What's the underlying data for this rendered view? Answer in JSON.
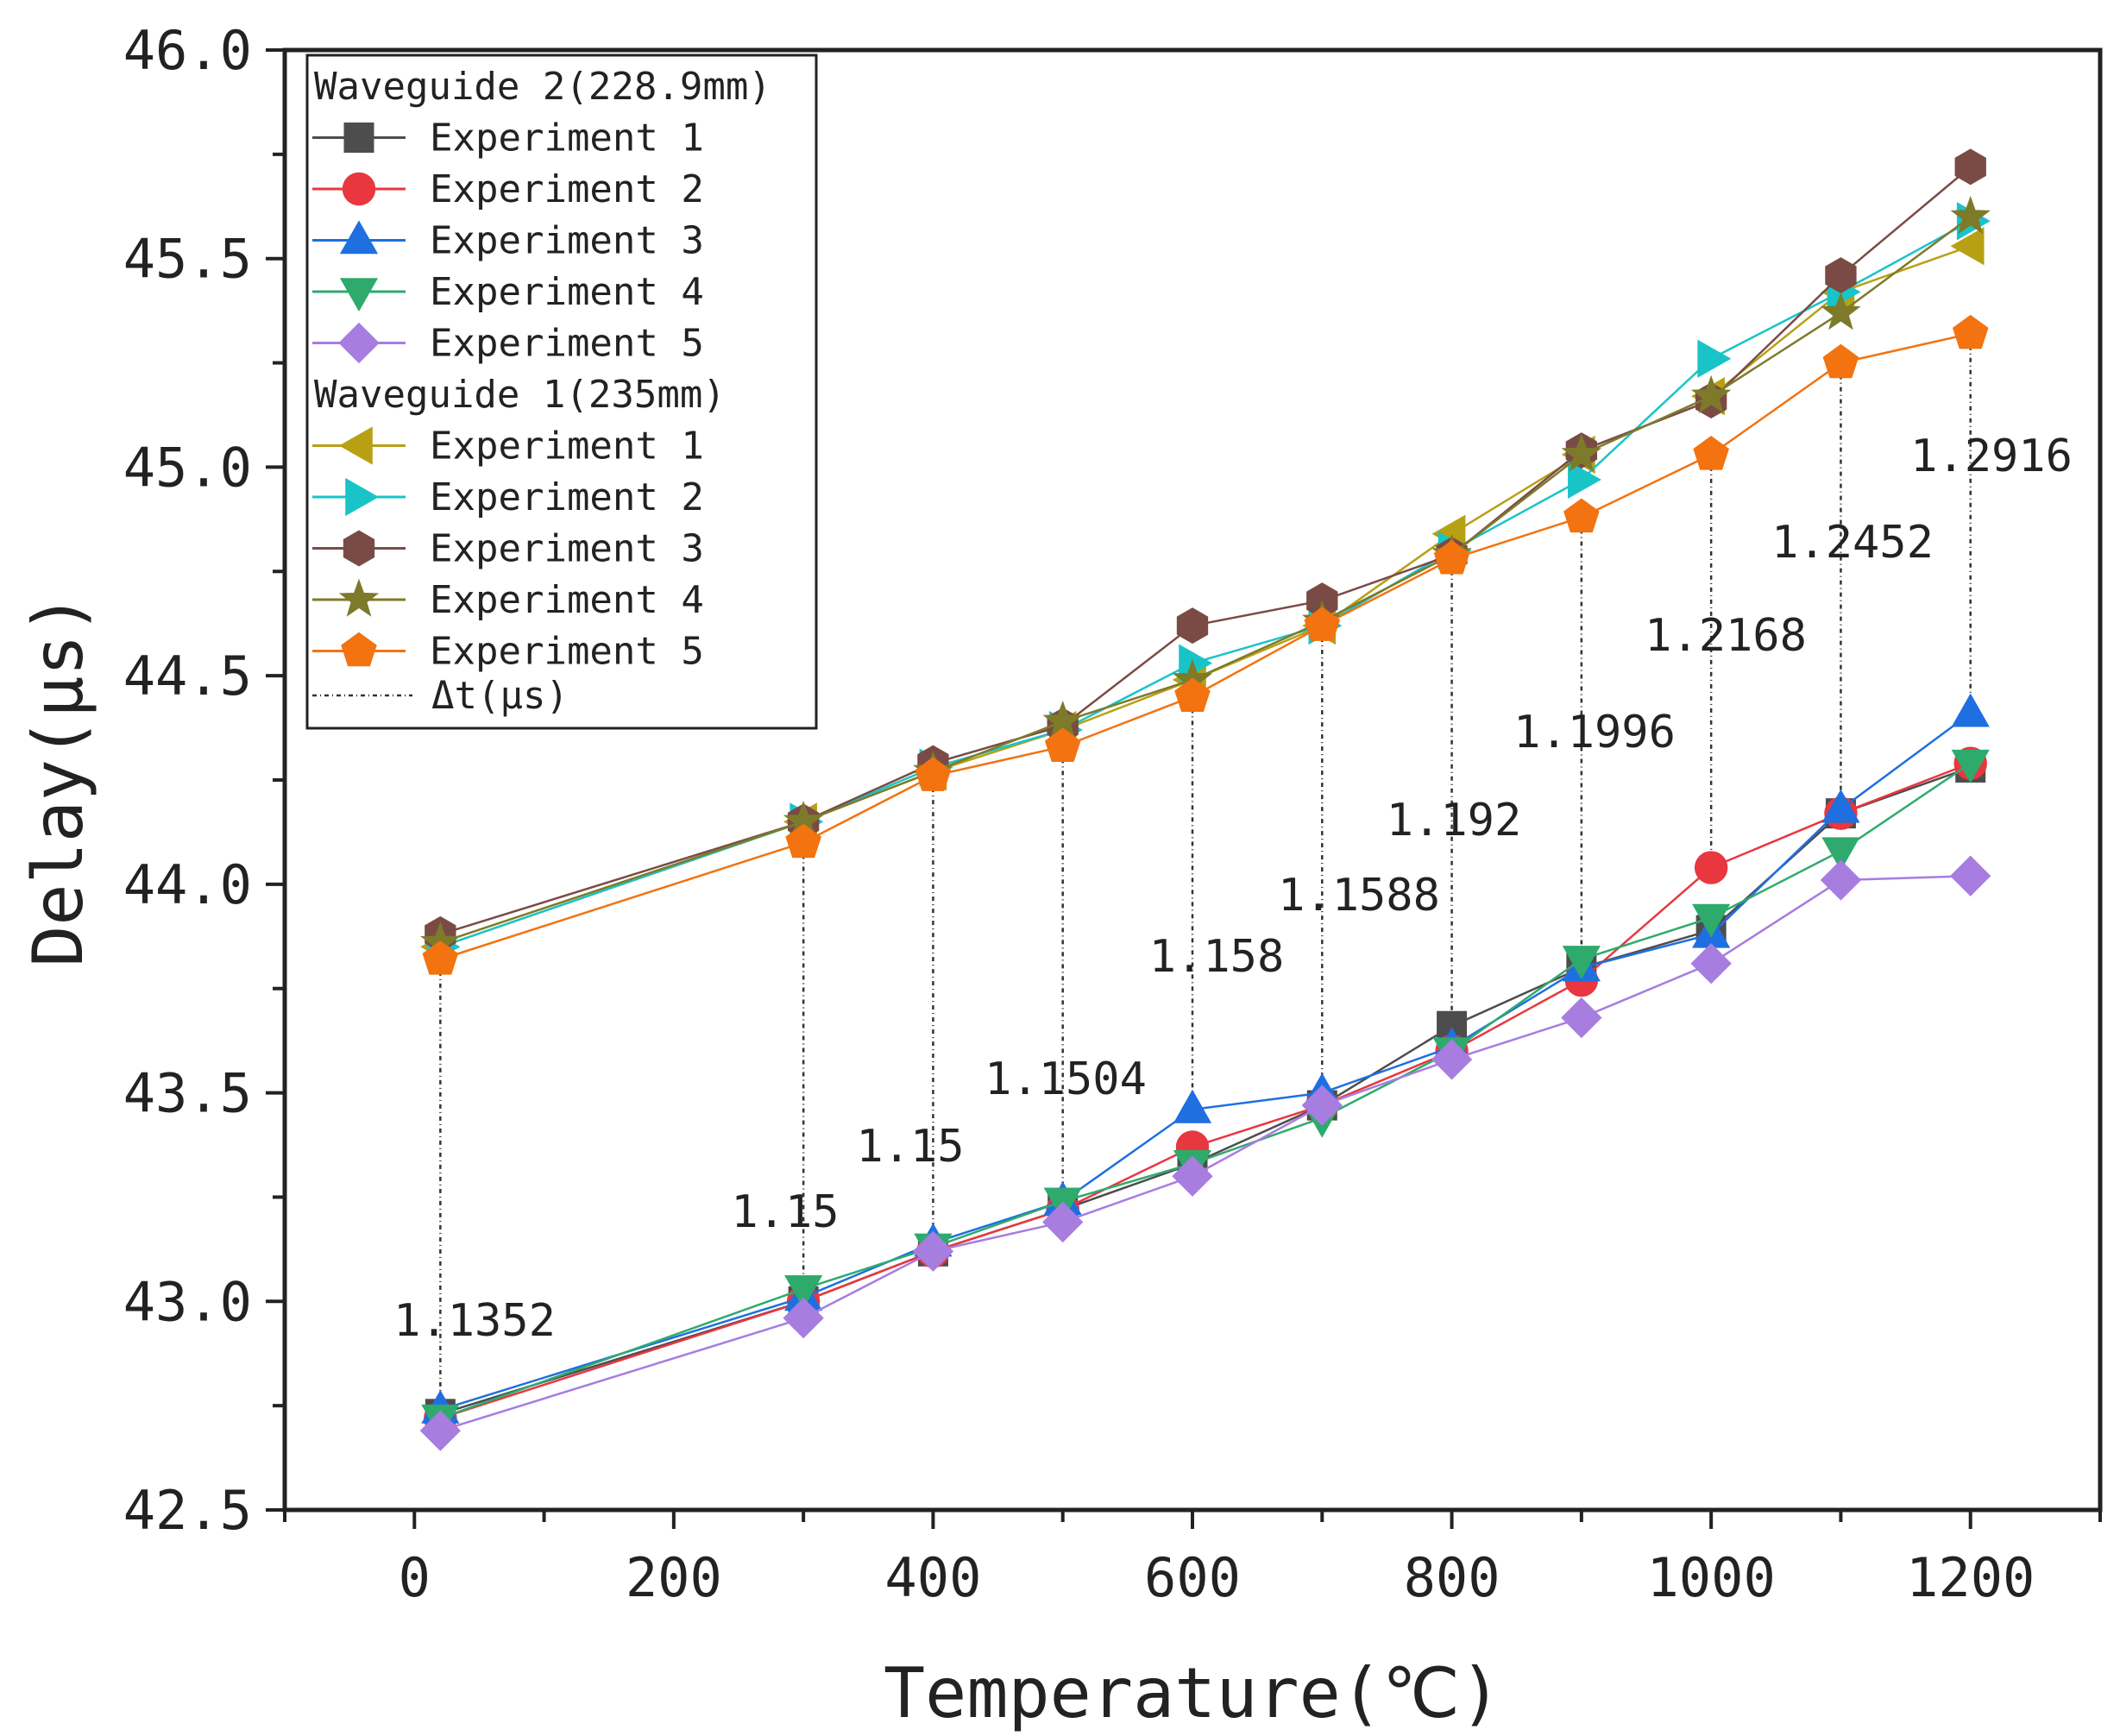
{
  "chart_data": {
    "type": "line",
    "xlabel": "Temperature(℃)",
    "ylabel": "Delay(μs)",
    "xlim": [
      -100,
      1300
    ],
    "ylim": [
      42.5,
      46.0
    ],
    "xticks": [
      0,
      200,
      400,
      600,
      800,
      1000,
      1200
    ],
    "yticks": [
      42.5,
      43.0,
      43.5,
      44.0,
      44.5,
      45.0,
      45.5,
      46.0
    ],
    "ytick_labels": [
      "42.5",
      "43.0",
      "43.5",
      "44.0",
      "44.5",
      "45.0",
      "45.5",
      "46.0"
    ],
    "x": [
      20,
      300,
      400,
      500,
      600,
      700,
      800,
      900,
      1000,
      1100,
      1200
    ],
    "legend_position": "top-left",
    "groups": [
      {
        "name": "Waveguide 2(228.9mm)",
        "series": [
          {
            "name": "Experiment 1",
            "marker": "square",
            "color": "#4d4d4d",
            "values": [
              42.73,
              43.0,
              43.12,
              43.22,
              43.33,
              43.47,
              43.66,
              43.8,
              43.89,
              44.17,
              44.28
            ]
          },
          {
            "name": "Experiment 2",
            "marker": "circle",
            "color": "#e8373f",
            "values": [
              42.72,
              43.0,
              43.12,
              43.22,
              43.37,
              43.47,
              43.6,
              43.77,
              44.04,
              44.17,
              44.29
            ]
          },
          {
            "name": "Experiment 3",
            "marker": "triangle-up",
            "color": "#1f6fe0",
            "values": [
              42.74,
              43.01,
              43.14,
              43.24,
              43.46,
              43.5,
              43.61,
              43.8,
              43.88,
              44.18,
              44.41
            ]
          },
          {
            "name": "Experiment 4",
            "marker": "triangle-down",
            "color": "#2faa6d",
            "values": [
              42.72,
              43.03,
              43.13,
              43.24,
              43.33,
              43.44,
              43.6,
              43.82,
              43.92,
              44.08,
              44.29
            ]
          },
          {
            "name": "Experiment 5",
            "marker": "diamond",
            "color": "#a77de0",
            "values": [
              42.69,
              42.96,
              43.12,
              43.19,
              43.3,
              43.47,
              43.58,
              43.68,
              43.81,
              44.01,
              44.02
            ]
          }
        ]
      },
      {
        "name": "Waveguide 1(235mm)",
        "series": [
          {
            "name": "Experiment 1",
            "marker": "triangle-left",
            "color": "#b8a015",
            "values": [
              43.85,
              44.15,
              44.27,
              44.37,
              44.49,
              44.62,
              44.84,
              45.03,
              45.17,
              45.42,
              45.53
            ]
          },
          {
            "name": "Experiment 2",
            "marker": "triangle-right",
            "color": "#19c4c8",
            "values": [
              43.85,
              44.15,
              44.28,
              44.37,
              44.53,
              44.62,
              44.8,
              44.97,
              45.26,
              45.42,
              45.59
            ]
          },
          {
            "name": "Experiment 3",
            "marker": "hexagon",
            "color": "#7a4b45",
            "values": [
              43.88,
              44.15,
              44.29,
              44.38,
              44.62,
              44.68,
              44.79,
              45.04,
              45.16,
              45.46,
              45.72
            ]
          },
          {
            "name": "Experiment 4",
            "marker": "star",
            "color": "#7d7b2a",
            "values": [
              43.86,
              44.15,
              44.27,
              44.39,
              44.49,
              44.63,
              44.79,
              45.03,
              45.17,
              45.37,
              45.6
            ]
          },
          {
            "name": "Experiment 5",
            "marker": "pentagon",
            "color": "#f27310",
            "values": [
              43.82,
              44.1,
              44.26,
              44.33,
              44.45,
              44.62,
              44.78,
              44.88,
              45.03,
              45.25,
              45.32
            ]
          }
        ]
      }
    ],
    "delta_legend": "Δt(μs)",
    "delta_values": [
      "1.1352",
      "1.15",
      "1.15",
      "1.1504",
      "1.158",
      "1.1588",
      "1.192",
      "1.1996",
      "1.2168",
      "1.2452",
      "1.2916"
    ],
    "colors": {
      "axis": "#222222",
      "delta_line": "#333333"
    }
  }
}
